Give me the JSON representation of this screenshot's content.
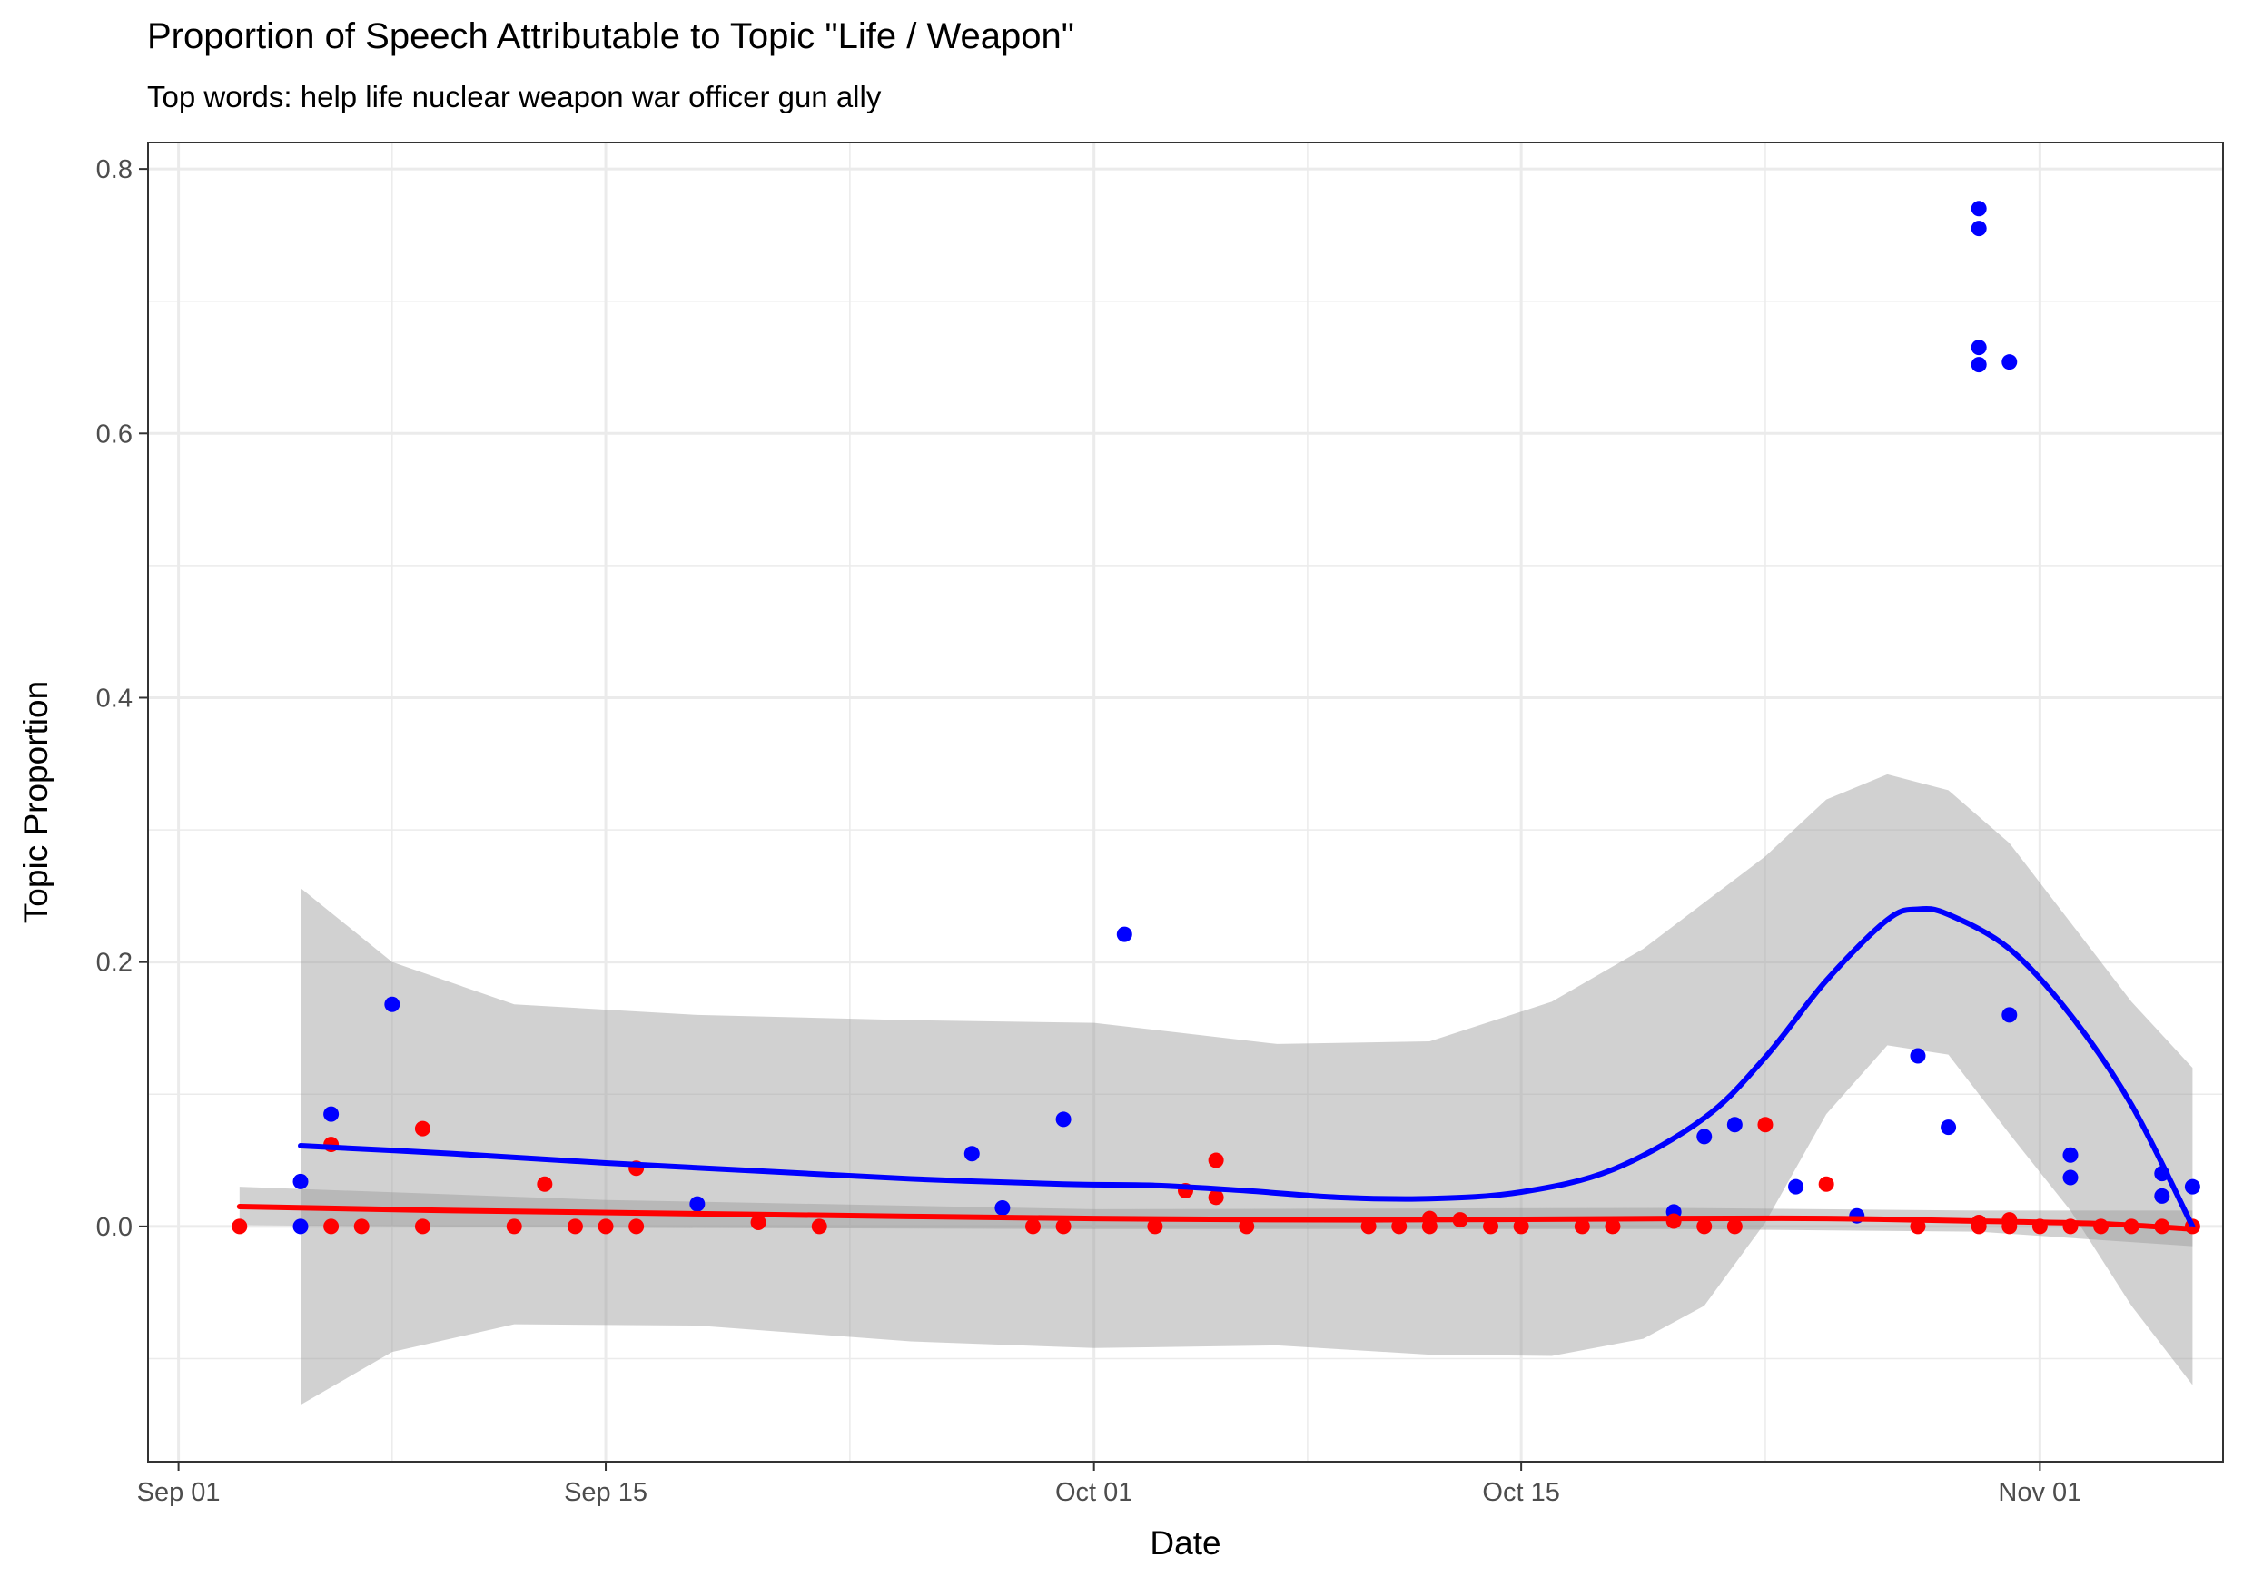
{
  "chart_data": {
    "type": "scatter",
    "title": "Proportion of Speech Attributable to Topic \"Life / Weapon\"",
    "subtitle": "Top words: help life nuclear weapon war officer gun ally",
    "xlabel": "Date",
    "ylabel": "Topic Proportion",
    "xlim": [
      "2024-08-31",
      "2024-11-07"
    ],
    "ylim": [
      -0.178,
      0.82
    ],
    "x_ticks": [
      {
        "date": "2024-09-01",
        "label": "Sep 01"
      },
      {
        "date": "2024-09-15",
        "label": "Sep 15"
      },
      {
        "date": "2024-10-01",
        "label": "Oct 01"
      },
      {
        "date": "2024-10-15",
        "label": "Oct 15"
      },
      {
        "date": "2024-11-01",
        "label": "Nov 01"
      }
    ],
    "x_minor_ticks": [
      "2024-09-08",
      "2024-09-23",
      "2024-10-08",
      "2024-10-23",
      "2024-11-08"
    ],
    "y_ticks": [
      {
        "value": 0.0,
        "label": "0.0"
      },
      {
        "value": 0.2,
        "label": "0.2"
      },
      {
        "value": 0.4,
        "label": "0.4"
      },
      {
        "value": 0.6,
        "label": "0.6"
      },
      {
        "value": 0.8,
        "label": "0.8"
      }
    ],
    "y_minor_ticks": [
      -0.1,
      0.1,
      0.3,
      0.5,
      0.7
    ],
    "grid": true,
    "legend": "none",
    "colors": {
      "blue": "#0000ff",
      "red": "#ff0000",
      "ribbon": "#999999",
      "grid": "#ebebeb",
      "panel_border": "#333333"
    },
    "series": [
      {
        "color": "#0000ff",
        "points": [
          {
            "x": "2024-09-05",
            "y": 0.034
          },
          {
            "x": "2024-09-05",
            "y": 0.0
          },
          {
            "x": "2024-09-06",
            "y": 0.085
          },
          {
            "x": "2024-09-08",
            "y": 0.168
          },
          {
            "x": "2024-09-18",
            "y": 0.017
          },
          {
            "x": "2024-09-27",
            "y": 0.055
          },
          {
            "x": "2024-09-28",
            "y": 0.014
          },
          {
            "x": "2024-09-30",
            "y": 0.081
          },
          {
            "x": "2024-10-02",
            "y": 0.221
          },
          {
            "x": "2024-10-20",
            "y": 0.011
          },
          {
            "x": "2024-10-21",
            "y": 0.068
          },
          {
            "x": "2024-10-22",
            "y": 0.077
          },
          {
            "x": "2024-10-24",
            "y": 0.03
          },
          {
            "x": "2024-10-26",
            "y": 0.008
          },
          {
            "x": "2024-10-28",
            "y": 0.129
          },
          {
            "x": "2024-10-29",
            "y": 0.075
          },
          {
            "x": "2024-10-30",
            "y": 0.77
          },
          {
            "x": "2024-10-30",
            "y": 0.755
          },
          {
            "x": "2024-10-30",
            "y": 0.665
          },
          {
            "x": "2024-10-30",
            "y": 0.652
          },
          {
            "x": "2024-10-31",
            "y": 0.654
          },
          {
            "x": "2024-10-31",
            "y": 0.16
          },
          {
            "x": "2024-11-02",
            "y": 0.054
          },
          {
            "x": "2024-11-02",
            "y": 0.037
          },
          {
            "x": "2024-11-05",
            "y": 0.04
          },
          {
            "x": "2024-11-05",
            "y": 0.023
          },
          {
            "x": "2024-11-06",
            "y": 0.03
          }
        ],
        "smooth": [
          {
            "x": "2024-09-05",
            "y": 0.061
          },
          {
            "x": "2024-09-10",
            "y": 0.055
          },
          {
            "x": "2024-09-15",
            "y": 0.048
          },
          {
            "x": "2024-09-20",
            "y": 0.042
          },
          {
            "x": "2024-09-25",
            "y": 0.036
          },
          {
            "x": "2024-09-30",
            "y": 0.032
          },
          {
            "x": "2024-10-03",
            "y": 0.031
          },
          {
            "x": "2024-10-06",
            "y": 0.027
          },
          {
            "x": "2024-10-09",
            "y": 0.022
          },
          {
            "x": "2024-10-12",
            "y": 0.021
          },
          {
            "x": "2024-10-15",
            "y": 0.026
          },
          {
            "x": "2024-10-18",
            "y": 0.043
          },
          {
            "x": "2024-10-21",
            "y": 0.082
          },
          {
            "x": "2024-10-23",
            "y": 0.128
          },
          {
            "x": "2024-10-25",
            "y": 0.186
          },
          {
            "x": "2024-10-27",
            "y": 0.232
          },
          {
            "x": "2024-10-28",
            "y": 0.24
          },
          {
            "x": "2024-10-29",
            "y": 0.236
          },
          {
            "x": "2024-10-31",
            "y": 0.21
          },
          {
            "x": "2024-11-02",
            "y": 0.16
          },
          {
            "x": "2024-11-04",
            "y": 0.092
          },
          {
            "x": "2024-11-06",
            "y": 0.0
          }
        ],
        "ribbon": [
          {
            "x": "2024-09-05",
            "lo": -0.135,
            "hi": 0.256
          },
          {
            "x": "2024-09-08",
            "lo": -0.095,
            "hi": 0.2
          },
          {
            "x": "2024-09-12",
            "lo": -0.074,
            "hi": 0.168
          },
          {
            "x": "2024-09-18",
            "lo": -0.075,
            "hi": 0.16
          },
          {
            "x": "2024-09-25",
            "lo": -0.087,
            "hi": 0.156
          },
          {
            "x": "2024-10-01",
            "lo": -0.092,
            "hi": 0.154
          },
          {
            "x": "2024-10-07",
            "lo": -0.09,
            "hi": 0.138
          },
          {
            "x": "2024-10-12",
            "lo": -0.097,
            "hi": 0.14
          },
          {
            "x": "2024-10-16",
            "lo": -0.098,
            "hi": 0.17
          },
          {
            "x": "2024-10-19",
            "lo": -0.085,
            "hi": 0.21
          },
          {
            "x": "2024-10-21",
            "lo": -0.06,
            "hi": 0.245
          },
          {
            "x": "2024-10-23",
            "lo": 0.003,
            "hi": 0.28
          },
          {
            "x": "2024-10-25",
            "lo": 0.085,
            "hi": 0.323
          },
          {
            "x": "2024-10-27",
            "lo": 0.137,
            "hi": 0.342
          },
          {
            "x": "2024-10-29",
            "lo": 0.13,
            "hi": 0.33
          },
          {
            "x": "2024-10-31",
            "lo": 0.07,
            "hi": 0.29
          },
          {
            "x": "2024-11-02",
            "lo": 0.012,
            "hi": 0.23
          },
          {
            "x": "2024-11-04",
            "lo": -0.06,
            "hi": 0.17
          },
          {
            "x": "2024-11-06",
            "lo": -0.12,
            "hi": 0.12
          }
        ]
      },
      {
        "color": "#ff0000",
        "points": [
          {
            "x": "2024-09-03",
            "y": 0.0
          },
          {
            "x": "2024-09-06",
            "y": 0.062
          },
          {
            "x": "2024-09-06",
            "y": 0.0
          },
          {
            "x": "2024-09-07",
            "y": 0.0
          },
          {
            "x": "2024-09-09",
            "y": 0.074
          },
          {
            "x": "2024-09-09",
            "y": 0.0
          },
          {
            "x": "2024-09-12",
            "y": 0.0
          },
          {
            "x": "2024-09-13",
            "y": 0.032
          },
          {
            "x": "2024-09-14",
            "y": 0.0
          },
          {
            "x": "2024-09-15",
            "y": 0.0
          },
          {
            "x": "2024-09-16",
            "y": 0.044
          },
          {
            "x": "2024-09-16",
            "y": 0.0
          },
          {
            "x": "2024-09-20",
            "y": 0.003
          },
          {
            "x": "2024-09-22",
            "y": 0.0
          },
          {
            "x": "2024-09-29",
            "y": 0.0
          },
          {
            "x": "2024-09-30",
            "y": 0.0
          },
          {
            "x": "2024-10-03",
            "y": 0.0
          },
          {
            "x": "2024-10-04",
            "y": 0.027
          },
          {
            "x": "2024-10-05",
            "y": 0.05
          },
          {
            "x": "2024-10-05",
            "y": 0.022
          },
          {
            "x": "2024-10-06",
            "y": 0.0
          },
          {
            "x": "2024-10-10",
            "y": 0.0
          },
          {
            "x": "2024-10-11",
            "y": 0.0
          },
          {
            "x": "2024-10-12",
            "y": 0.006
          },
          {
            "x": "2024-10-12",
            "y": 0.0
          },
          {
            "x": "2024-10-13",
            "y": 0.005
          },
          {
            "x": "2024-10-14",
            "y": 0.0
          },
          {
            "x": "2024-10-15",
            "y": 0.0
          },
          {
            "x": "2024-10-17",
            "y": 0.0
          },
          {
            "x": "2024-10-18",
            "y": 0.0
          },
          {
            "x": "2024-10-20",
            "y": 0.004
          },
          {
            "x": "2024-10-21",
            "y": 0.0
          },
          {
            "x": "2024-10-22",
            "y": 0.0
          },
          {
            "x": "2024-10-23",
            "y": 0.077
          },
          {
            "x": "2024-10-25",
            "y": 0.032
          },
          {
            "x": "2024-10-28",
            "y": 0.0
          },
          {
            "x": "2024-10-30",
            "y": 0.003
          },
          {
            "x": "2024-10-30",
            "y": 0.0
          },
          {
            "x": "2024-10-31",
            "y": 0.005
          },
          {
            "x": "2024-10-31",
            "y": 0.0
          },
          {
            "x": "2024-11-01",
            "y": 0.0
          },
          {
            "x": "2024-11-02",
            "y": 0.0
          },
          {
            "x": "2024-11-03",
            "y": 0.0
          },
          {
            "x": "2024-11-04",
            "y": 0.0
          },
          {
            "x": "2024-11-05",
            "y": 0.0
          },
          {
            "x": "2024-11-06",
            "y": 0.0
          }
        ],
        "smooth": [
          {
            "x": "2024-09-03",
            "y": 0.015
          },
          {
            "x": "2024-09-10",
            "y": 0.012
          },
          {
            "x": "2024-09-20",
            "y": 0.009
          },
          {
            "x": "2024-10-01",
            "y": 0.006
          },
          {
            "x": "2024-10-10",
            "y": 0.005
          },
          {
            "x": "2024-10-20",
            "y": 0.006
          },
          {
            "x": "2024-10-25",
            "y": 0.006
          },
          {
            "x": "2024-10-30",
            "y": 0.004
          },
          {
            "x": "2024-11-03",
            "y": 0.002
          },
          {
            "x": "2024-11-06",
            "y": -0.002
          }
        ],
        "ribbon": [
          {
            "x": "2024-09-03",
            "lo": 0.001,
            "hi": 0.03
          },
          {
            "x": "2024-09-15",
            "lo": -0.001,
            "hi": 0.02
          },
          {
            "x": "2024-10-01",
            "lo": -0.002,
            "hi": 0.013
          },
          {
            "x": "2024-10-20",
            "lo": -0.002,
            "hi": 0.014
          },
          {
            "x": "2024-10-30",
            "lo": -0.004,
            "hi": 0.012
          },
          {
            "x": "2024-11-06",
            "lo": -0.015,
            "hi": 0.012
          }
        ]
      }
    ]
  }
}
